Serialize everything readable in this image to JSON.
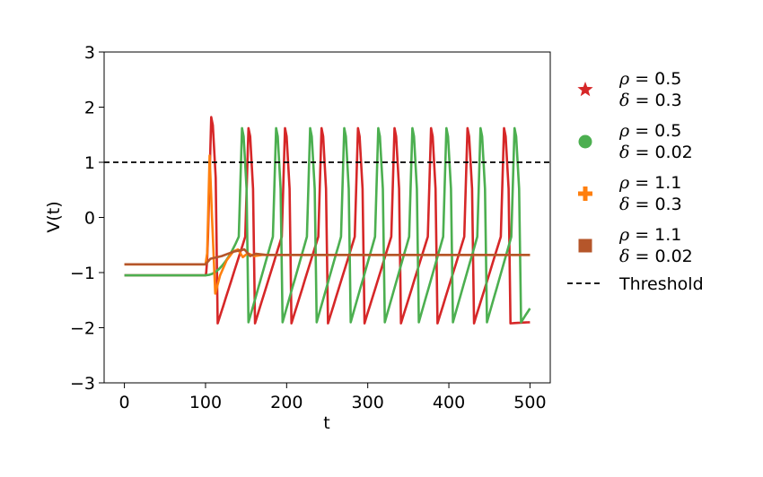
{
  "chart_data": {
    "type": "line",
    "title": "",
    "xlabel": "t",
    "ylabel": "V(t)",
    "xlim": [
      -25,
      525
    ],
    "ylim": [
      -3,
      3
    ],
    "x_ticks": [
      0,
      100,
      200,
      300,
      400,
      500
    ],
    "x_tick_labels": [
      "0",
      "100",
      "200",
      "300",
      "400",
      "500"
    ],
    "y_ticks": [
      -3,
      -2,
      -1,
      0,
      1,
      2,
      3
    ],
    "y_tick_labels": [
      "−3",
      "−2",
      "−1",
      "0",
      "1",
      "2",
      "3"
    ],
    "grid": false,
    "legend_position": "outside-right",
    "threshold": {
      "label": "Threshold",
      "value": 1.0,
      "color": "#000000",
      "style": "dashed"
    },
    "series": [
      {
        "name": "ρ = 0.5, δ = 0.3",
        "legend_lines": [
          "ρ = 0.5",
          "δ = 0.3"
        ],
        "marker": "star",
        "color": "#d62728",
        "onset": 100,
        "baseline": -1.05,
        "first_peak": 1.82,
        "spike_peak": 1.62,
        "trough": -1.92,
        "spike_times": [
          107,
          153,
          198,
          243,
          288,
          333,
          378,
          423,
          468
        ],
        "end_value": -1.9
      },
      {
        "name": "ρ = 0.5, δ = 0.02",
        "legend_lines": [
          "ρ = 0.5",
          "δ = 0.02"
        ],
        "marker": "circle",
        "color": "#4caf50",
        "onset": 100,
        "baseline": -1.05,
        "spike_peak": 1.62,
        "trough": -1.9,
        "spike_times": [
          145,
          187,
          229,
          271,
          313,
          355,
          397,
          439,
          481
        ],
        "end_value": -1.65
      },
      {
        "name": "ρ = 1.1, δ = 0.3",
        "legend_lines": [
          "ρ = 1.1",
          "δ = 0.3"
        ],
        "marker": "plus",
        "color": "#ff7f0e",
        "onset": 100,
        "baseline": -0.85,
        "first_peak": 1.12,
        "dip": -1.38,
        "steady": -0.68
      },
      {
        "name": "ρ = 1.1, δ = 0.02",
        "legend_lines": [
          "ρ = 1.1",
          "δ = 0.02"
        ],
        "marker": "square",
        "color": "#b5562a",
        "onset": 100,
        "baseline": -0.85,
        "bump": -0.58,
        "steady": -0.68
      }
    ]
  }
}
